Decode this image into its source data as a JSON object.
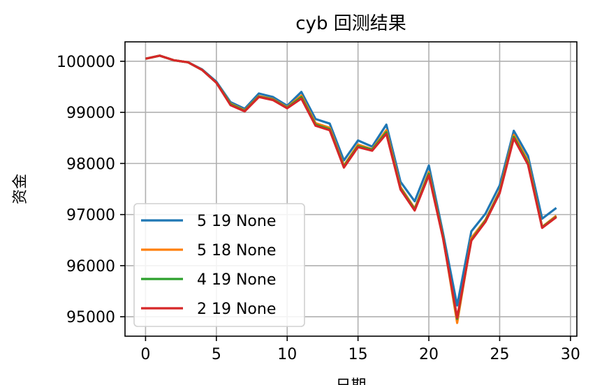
{
  "chart_data": {
    "type": "line",
    "title": "cyb 回测结果",
    "xlabel": "日期",
    "ylabel": "资金",
    "xlim": [
      -1.45,
      30.45
    ],
    "ylim": [
      94620,
      100380
    ],
    "xticks": [
      0,
      5,
      10,
      15,
      20,
      25,
      30
    ],
    "yticks": [
      95000,
      96000,
      97000,
      98000,
      99000,
      100000
    ],
    "grid": true,
    "legend_position": "lower-left",
    "x": [
      0,
      1,
      2,
      3,
      4,
      5,
      6,
      7,
      8,
      9,
      10,
      11,
      12,
      13,
      14,
      15,
      16,
      17,
      18,
      19,
      20,
      21,
      22,
      23,
      24,
      25,
      26,
      27,
      28,
      29
    ],
    "series": [
      {
        "name": "5 19 None",
        "color": "#1f77b4",
        "values": [
          100050,
          100110,
          100020,
          99980,
          99840,
          99600,
          99200,
          99070,
          99370,
          99300,
          99130,
          99400,
          98870,
          98780,
          98060,
          98450,
          98330,
          98760,
          97640,
          97260,
          97960,
          96640,
          95220,
          96670,
          97020,
          97570,
          98640,
          98150,
          96920,
          97130
        ]
      },
      {
        "name": "5 18 None",
        "color": "#ff7f0e",
        "values": [
          100050,
          100110,
          100020,
          99980,
          99830,
          99580,
          99170,
          99040,
          99320,
          99260,
          99100,
          99330,
          98790,
          98700,
          97960,
          98370,
          98280,
          98650,
          97540,
          97120,
          97830,
          96570,
          94880,
          96540,
          96900,
          97460,
          98560,
          98050,
          96760,
          96980
        ]
      },
      {
        "name": "4 19 None",
        "color": "#2ca02c",
        "values": [
          100050,
          100110,
          100020,
          99980,
          99830,
          99580,
          99160,
          99030,
          99310,
          99250,
          99090,
          99300,
          98760,
          98670,
          97940,
          98340,
          98270,
          98610,
          97510,
          97100,
          97800,
          96560,
          94960,
          96500,
          96880,
          97440,
          98520,
          98010,
          96750,
          96960
        ]
      },
      {
        "name": "2 19 None",
        "color": "#d62728",
        "values": [
          100050,
          100110,
          100020,
          99980,
          99830,
          99580,
          99140,
          99020,
          99300,
          99240,
          99080,
          99270,
          98740,
          98650,
          97920,
          98320,
          98250,
          98580,
          97490,
          97080,
          97770,
          96540,
          94980,
          96490,
          96860,
          97420,
          98490,
          97980,
          96740,
          96950
        ]
      }
    ]
  }
}
